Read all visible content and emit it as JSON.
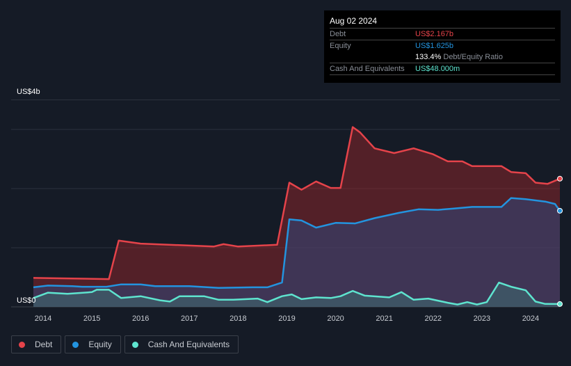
{
  "tooltip": {
    "date": "Aug 02 2024",
    "rows": [
      {
        "label": "Debt",
        "value": "US$2.167b"
      },
      {
        "label": "Equity",
        "value": "US$1.625b"
      },
      {
        "ratio_value": "133.4%",
        "ratio_label": "Debt/Equity Ratio"
      },
      {
        "label": "Cash And Equivalents",
        "value": "US$48.000m"
      }
    ]
  },
  "legend": [
    {
      "label": "Debt",
      "color": "#e5434a"
    },
    {
      "label": "Equity",
      "color": "#2394df"
    },
    {
      "label": "Cash And Equivalents",
      "color": "#5ee4cf"
    }
  ],
  "chart_data": {
    "type": "area",
    "ylabel_top": "US$4b",
    "ylabel_bottom": "US$0",
    "ylim": [
      0,
      3.5
    ],
    "xlim": [
      2013.8,
      2024.6
    ],
    "xticks": [
      "2014",
      "2015",
      "2016",
      "2017",
      "2018",
      "2019",
      "2020",
      "2021",
      "2022",
      "2023",
      "2024"
    ],
    "gridlines": [
      1,
      2,
      3,
      3.5
    ],
    "series": [
      {
        "name": "Debt",
        "color": "#e5434a",
        "fill": "rgba(160,40,45,0.45)",
        "x": [
          2013.8,
          2015.35,
          2015.55,
          2016,
          2017.5,
          2017.7,
          2018,
          2018.8,
          2019.05,
          2019.3,
          2019.6,
          2019.9,
          2020.1,
          2020.35,
          2020.5,
          2020.8,
          2021.2,
          2021.6,
          2022,
          2022.3,
          2022.6,
          2022.8,
          2023.4,
          2023.6,
          2023.9,
          2024.1,
          2024.35,
          2024.6
        ],
        "y": [
          0.49,
          0.47,
          1.12,
          1.07,
          1.02,
          1.06,
          1.02,
          1.05,
          2.1,
          1.98,
          2.12,
          2.01,
          2.01,
          3.04,
          2.95,
          2.68,
          2.6,
          2.68,
          2.58,
          2.46,
          2.46,
          2.38,
          2.38,
          2.28,
          2.26,
          2.1,
          2.08,
          2.167
        ]
      },
      {
        "name": "Equity",
        "color": "#2394df",
        "fill": "rgba(40,80,140,0.45)",
        "x": [
          2013.8,
          2014.1,
          2014.6,
          2014.8,
          2015.3,
          2015.6,
          2016,
          2016.3,
          2017,
          2017.6,
          2018.3,
          2018.6,
          2018.9,
          2019.05,
          2019.3,
          2019.6,
          2020,
          2020.4,
          2020.8,
          2021.3,
          2021.7,
          2022.1,
          2022.4,
          2022.8,
          2023.2,
          2023.4,
          2023.6,
          2023.9,
          2024.3,
          2024.5,
          2024.6
        ],
        "y": [
          0.33,
          0.36,
          0.35,
          0.34,
          0.34,
          0.38,
          0.38,
          0.35,
          0.35,
          0.32,
          0.33,
          0.33,
          0.41,
          1.48,
          1.46,
          1.34,
          1.42,
          1.41,
          1.5,
          1.59,
          1.65,
          1.64,
          1.66,
          1.69,
          1.69,
          1.69,
          1.84,
          1.82,
          1.78,
          1.74,
          1.625
        ]
      },
      {
        "name": "Cash And Equivalents",
        "color": "#5ee4cf",
        "fill": "rgba(60,140,130,0.35)",
        "x": [
          2013.8,
          2014.1,
          2014.5,
          2015,
          2015.1,
          2015.35,
          2015.6,
          2016,
          2016.4,
          2016.6,
          2016.8,
          2017.3,
          2017.6,
          2017.9,
          2018.4,
          2018.6,
          2018.9,
          2019.1,
          2019.3,
          2019.6,
          2019.9,
          2020.1,
          2020.35,
          2020.6,
          2021.1,
          2021.35,
          2021.6,
          2021.9,
          2022.3,
          2022.5,
          2022.7,
          2022.9,
          2023.1,
          2023.35,
          2023.6,
          2023.9,
          2024.1,
          2024.3,
          2024.6
        ],
        "y": [
          0.15,
          0.24,
          0.22,
          0.25,
          0.29,
          0.29,
          0.15,
          0.18,
          0.11,
          0.09,
          0.18,
          0.18,
          0.12,
          0.12,
          0.14,
          0.08,
          0.18,
          0.21,
          0.13,
          0.16,
          0.15,
          0.18,
          0.27,
          0.19,
          0.16,
          0.25,
          0.12,
          0.14,
          0.07,
          0.04,
          0.08,
          0.04,
          0.08,
          0.41,
          0.34,
          0.28,
          0.09,
          0.05,
          0.048
        ]
      }
    ]
  }
}
